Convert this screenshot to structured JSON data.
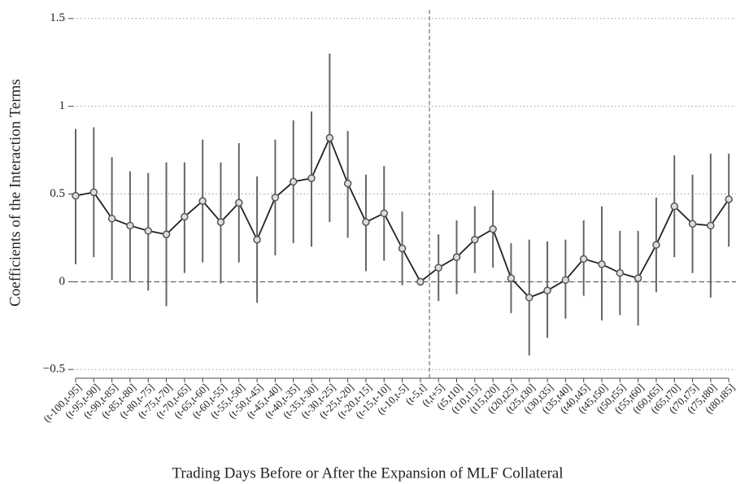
{
  "chart_data": {
    "type": "errorbar",
    "x_label": "Trading Days Before or After the Expansion of MLF Collateral",
    "y_label": "Coefficients of the Interaction Terms",
    "categories": [
      "(t-100,t-95]",
      "(t-95,t-90]",
      "(t-90,t-85]",
      "(t-85,t-80]",
      "(t-80,t-75]",
      "(t-75,t-70]",
      "(t-70,t-65]",
      "(t-65,t-60]",
      "(t-60,t-55]",
      "(t-55,t-50]",
      "(t-50,t-45]",
      "(t-45,t-40]",
      "(t-40,t-35]",
      "(t-35,t-30]",
      "(t-30,t-25]",
      "(t-25,t-20]",
      "(t-20,t-15]",
      "(t-15,t-10]",
      "(t-10,t-5]",
      "(t-5,t]",
      "(t,t+5]",
      "(t5,t10]",
      "(t10,t15]",
      "(t15,t20]",
      "(t20,t25]",
      "(t25,t30]",
      "(t30,t35]",
      "(t35,t40]",
      "(t40,t45]",
      "(t45,t50]",
      "(t50,t55]",
      "(t55,t60]",
      "(t60,t65]",
      "(t65,t70]",
      "(t70,t75]",
      "(t75,t80]",
      "(t80,t85]"
    ],
    "values": [
      0.49,
      0.51,
      0.36,
      0.32,
      0.29,
      0.27,
      0.37,
      0.46,
      0.34,
      0.45,
      0.24,
      0.48,
      0.57,
      0.59,
      0.82,
      0.56,
      0.34,
      0.39,
      0.19,
      0.0,
      0.08,
      0.14,
      0.24,
      0.3,
      0.02,
      -0.09,
      -0.05,
      0.01,
      0.13,
      0.1,
      0.05,
      0.02,
      0.21,
      0.43,
      0.33,
      0.32,
      0.47
    ],
    "lower": [
      0.1,
      0.14,
      0.01,
      0.0,
      -0.05,
      -0.14,
      0.05,
      0.11,
      -0.01,
      0.11,
      -0.12,
      0.15,
      0.22,
      0.2,
      0.34,
      0.25,
      0.06,
      0.12,
      -0.02,
      null,
      -0.11,
      -0.07,
      0.05,
      0.08,
      -0.18,
      -0.42,
      -0.32,
      -0.21,
      -0.08,
      -0.22,
      -0.19,
      -0.25,
      -0.06,
      0.14,
      0.05,
      -0.09,
      0.2
    ],
    "upper": [
      0.87,
      0.88,
      0.71,
      0.63,
      0.62,
      0.68,
      0.68,
      0.81,
      0.68,
      0.79,
      0.6,
      0.81,
      0.92,
      0.97,
      1.3,
      0.86,
      0.61,
      0.66,
      0.4,
      null,
      0.27,
      0.35,
      0.43,
      0.52,
      0.22,
      0.24,
      0.23,
      0.24,
      0.35,
      0.43,
      0.29,
      0.29,
      0.48,
      0.72,
      0.61,
      0.73,
      0.73
    ],
    "color": "#222222",
    "bar_color": "#666666",
    "ylim": [
      -0.55,
      1.55
    ],
    "yticks": [
      {
        "value": -0.5,
        "label": "−0.5"
      },
      0,
      0.5,
      1,
      1.5
    ],
    "grid": true
  }
}
